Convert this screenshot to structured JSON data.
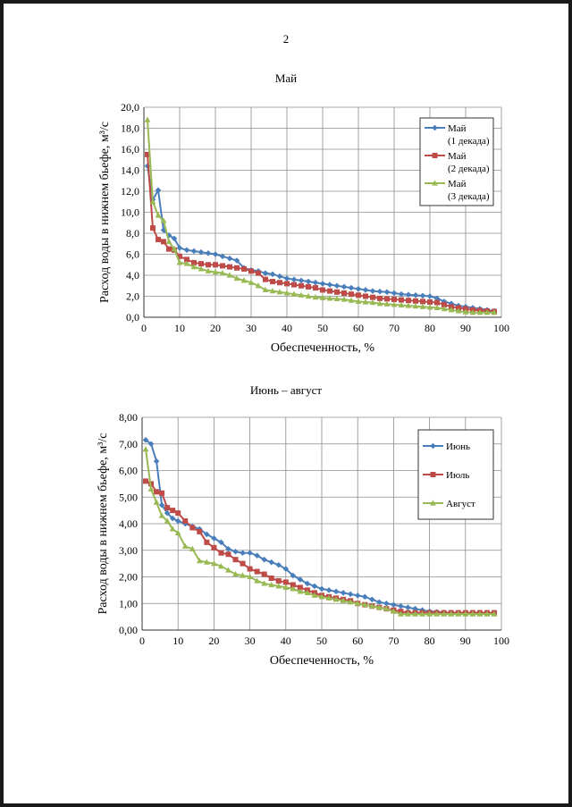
{
  "page": {
    "number": "2"
  },
  "chart_data": [
    {
      "type": "line",
      "title": "Май",
      "xlabel": "Обеспеченность, %",
      "ylabel": "Расход воды в нижнем бьефе, м³/с",
      "xlim": [
        0,
        100
      ],
      "ylim": [
        0,
        20
      ],
      "xticks": [
        "0",
        "10",
        "20",
        "30",
        "40",
        "50",
        "60",
        "70",
        "80",
        "90",
        "100"
      ],
      "yticks": [
        "0,0",
        "2,0",
        "4,0",
        "6,0",
        "8,0",
        "10,0",
        "12,0",
        "14,0",
        "16,0",
        "18,0",
        "20,0"
      ],
      "grid": true,
      "legend_position": "top-right",
      "series": [
        {
          "name": "Май (1 декада)",
          "legend_lines": [
            "Май",
            "(1 декада)"
          ],
          "color": "#4a7ebb",
          "marker": "diamond",
          "x": [
            1,
            2.5,
            4,
            5.5,
            7,
            8.5,
            10,
            12,
            14,
            16,
            18,
            20,
            22,
            24,
            26,
            28,
            30,
            32,
            34,
            36,
            38,
            40,
            42,
            44,
            46,
            48,
            50,
            52,
            54,
            56,
            58,
            60,
            62,
            64,
            66,
            68,
            70,
            72,
            74,
            76,
            78,
            80,
            82,
            84,
            86,
            88,
            90,
            92,
            94,
            96,
            98
          ],
          "y": [
            14.4,
            11.2,
            12.1,
            8.3,
            7.8,
            7.5,
            6.6,
            6.4,
            6.3,
            6.2,
            6.1,
            6.0,
            5.8,
            5.6,
            5.4,
            4.7,
            4.5,
            4.4,
            4.2,
            4.1,
            3.9,
            3.7,
            3.6,
            3.5,
            3.4,
            3.3,
            3.2,
            3.1,
            3.0,
            2.9,
            2.8,
            2.7,
            2.6,
            2.5,
            2.45,
            2.4,
            2.3,
            2.2,
            2.15,
            2.1,
            2.05,
            2.0,
            1.8,
            1.5,
            1.3,
            1.1,
            1.0,
            0.9,
            0.8,
            0.7,
            0.6
          ]
        },
        {
          "name": "Май (2 декада)",
          "legend_lines": [
            "Май",
            "(2 декада)"
          ],
          "color": "#be4b48",
          "marker": "square",
          "x": [
            1,
            2.5,
            4,
            5.5,
            7,
            8.5,
            10,
            12,
            14,
            16,
            18,
            20,
            22,
            24,
            26,
            28,
            30,
            32,
            34,
            36,
            38,
            40,
            42,
            44,
            46,
            48,
            50,
            52,
            54,
            56,
            58,
            60,
            62,
            64,
            66,
            68,
            70,
            72,
            74,
            76,
            78,
            80,
            82,
            84,
            86,
            88,
            90,
            92,
            94,
            96,
            98
          ],
          "y": [
            15.5,
            8.5,
            7.4,
            7.2,
            6.5,
            6.4,
            5.8,
            5.5,
            5.2,
            5.1,
            5.0,
            5.0,
            4.9,
            4.8,
            4.7,
            4.6,
            4.4,
            4.2,
            3.6,
            3.4,
            3.3,
            3.2,
            3.1,
            3.0,
            2.9,
            2.8,
            2.6,
            2.5,
            2.4,
            2.3,
            2.2,
            2.1,
            2.0,
            1.9,
            1.8,
            1.75,
            1.7,
            1.65,
            1.6,
            1.55,
            1.5,
            1.45,
            1.4,
            1.2,
            1.0,
            0.9,
            0.8,
            0.7,
            0.65,
            0.6,
            0.55
          ]
        },
        {
          "name": "Май (3 декада)",
          "legend_lines": [
            "Май",
            "(3 декада)"
          ],
          "color": "#98b954",
          "marker": "triangle",
          "x": [
            1,
            2.5,
            4,
            5.5,
            7,
            8.5,
            10,
            12,
            14,
            16,
            18,
            20,
            22,
            24,
            26,
            28,
            30,
            32,
            34,
            36,
            38,
            40,
            42,
            44,
            46,
            48,
            50,
            52,
            54,
            56,
            58,
            60,
            62,
            64,
            66,
            68,
            70,
            72,
            74,
            76,
            78,
            80,
            82,
            84,
            86,
            88,
            90,
            92,
            94,
            96,
            98
          ],
          "y": [
            18.8,
            11.0,
            9.7,
            9.2,
            7.2,
            6.5,
            5.2,
            5.1,
            4.8,
            4.6,
            4.4,
            4.3,
            4.2,
            4.0,
            3.7,
            3.5,
            3.3,
            3.0,
            2.6,
            2.5,
            2.4,
            2.3,
            2.2,
            2.1,
            2.0,
            1.9,
            1.85,
            1.8,
            1.75,
            1.7,
            1.6,
            1.5,
            1.45,
            1.4,
            1.3,
            1.25,
            1.2,
            1.15,
            1.1,
            1.05,
            1.0,
            0.95,
            0.9,
            0.8,
            0.7,
            0.6,
            0.5,
            0.45,
            0.45,
            0.45,
            0.45
          ]
        }
      ]
    },
    {
      "type": "line",
      "title": "Июнь – август",
      "xlabel": "Обеспеченность, %",
      "ylabel": "Расход воды в нижнем бьефе, м³/с",
      "xlim": [
        0,
        100
      ],
      "ylim": [
        0,
        8
      ],
      "xticks": [
        "0",
        "10",
        "20",
        "30",
        "40",
        "50",
        "60",
        "70",
        "80",
        "90",
        "100"
      ],
      "yticks": [
        "0,00",
        "1,00",
        "2,00",
        "3,00",
        "4,00",
        "5,00",
        "6,00",
        "7,00",
        "8,00"
      ],
      "grid": true,
      "legend_position": "top-right",
      "series": [
        {
          "name": "Июнь",
          "legend_lines": [
            "Июнь"
          ],
          "color": "#4a7ebb",
          "marker": "diamond",
          "x": [
            1,
            2.5,
            4,
            5.5,
            7,
            8.5,
            10,
            12,
            14,
            16,
            18,
            20,
            22,
            24,
            26,
            28,
            30,
            32,
            34,
            36,
            38,
            40,
            42,
            44,
            46,
            48,
            50,
            52,
            54,
            56,
            58,
            60,
            62,
            64,
            66,
            68,
            70,
            72,
            74,
            76,
            78,
            80,
            82,
            84,
            86,
            88,
            90,
            92,
            94,
            96,
            98
          ],
          "y": [
            7.15,
            7.0,
            6.35,
            4.7,
            4.4,
            4.2,
            4.1,
            4.0,
            3.9,
            3.8,
            3.6,
            3.45,
            3.3,
            3.05,
            2.95,
            2.9,
            2.9,
            2.8,
            2.65,
            2.55,
            2.45,
            2.3,
            2.05,
            1.9,
            1.75,
            1.65,
            1.55,
            1.5,
            1.45,
            1.4,
            1.35,
            1.3,
            1.25,
            1.15,
            1.05,
            1.0,
            0.95,
            0.9,
            0.85,
            0.8,
            0.75,
            0.7,
            0.68,
            0.66,
            0.65,
            0.64,
            0.63,
            0.62,
            0.62,
            0.62,
            0.62
          ]
        },
        {
          "name": "Июль",
          "legend_lines": [
            "Июль"
          ],
          "color": "#be4b48",
          "marker": "square",
          "x": [
            1,
            2.5,
            4,
            5.5,
            7,
            8.5,
            10,
            12,
            14,
            16,
            18,
            20,
            22,
            24,
            26,
            28,
            30,
            32,
            34,
            36,
            38,
            40,
            42,
            44,
            46,
            48,
            50,
            52,
            54,
            56,
            58,
            60,
            62,
            64,
            66,
            68,
            70,
            72,
            74,
            76,
            78,
            80,
            82,
            84,
            86,
            88,
            90,
            92,
            94,
            96,
            98
          ],
          "y": [
            5.6,
            5.5,
            5.2,
            5.15,
            4.6,
            4.5,
            4.4,
            4.1,
            3.85,
            3.7,
            3.3,
            3.1,
            2.9,
            2.85,
            2.65,
            2.5,
            2.3,
            2.2,
            2.1,
            1.95,
            1.85,
            1.8,
            1.7,
            1.6,
            1.5,
            1.4,
            1.3,
            1.25,
            1.2,
            1.15,
            1.1,
            1.0,
            0.95,
            0.9,
            0.85,
            0.8,
            0.75,
            0.7,
            0.65,
            0.65,
            0.65,
            0.65,
            0.65,
            0.65,
            0.65,
            0.65,
            0.65,
            0.65,
            0.65,
            0.65,
            0.65
          ]
        },
        {
          "name": "Август",
          "legend_lines": [
            "Август"
          ],
          "color": "#98b954",
          "marker": "triangle",
          "x": [
            1,
            2.5,
            4,
            5.5,
            7,
            8.5,
            10,
            12,
            14,
            16,
            18,
            20,
            22,
            24,
            26,
            28,
            30,
            32,
            34,
            36,
            38,
            40,
            42,
            44,
            46,
            48,
            50,
            52,
            54,
            56,
            58,
            60,
            62,
            64,
            66,
            68,
            70,
            72,
            74,
            76,
            78,
            80,
            82,
            84,
            86,
            88,
            90,
            92,
            94,
            96,
            98
          ],
          "y": [
            6.8,
            5.3,
            4.8,
            4.3,
            4.1,
            3.8,
            3.65,
            3.15,
            3.05,
            2.6,
            2.55,
            2.5,
            2.4,
            2.25,
            2.1,
            2.05,
            2.0,
            1.85,
            1.75,
            1.7,
            1.65,
            1.6,
            1.55,
            1.45,
            1.4,
            1.3,
            1.25,
            1.2,
            1.15,
            1.1,
            1.05,
            1.0,
            0.95,
            0.9,
            0.85,
            0.8,
            0.7,
            0.6,
            0.6,
            0.6,
            0.6,
            0.6,
            0.6,
            0.6,
            0.6,
            0.6,
            0.6,
            0.6,
            0.6,
            0.6,
            0.6
          ]
        }
      ]
    }
  ]
}
